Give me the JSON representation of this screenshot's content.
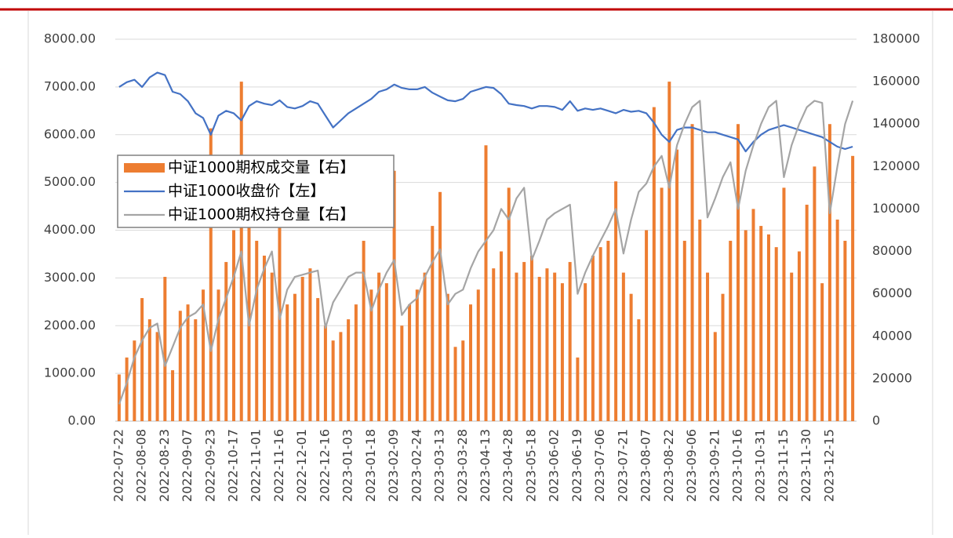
{
  "chart_data": {
    "type": "bar",
    "categories": [
      "2022-07-22",
      null,
      null,
      "2022-08-08",
      null,
      null,
      "2022-08-23",
      null,
      null,
      "2022-09-07",
      null,
      null,
      "2022-09-23",
      null,
      null,
      "2022-10-17",
      null,
      null,
      "2022-11-01",
      null,
      null,
      "2022-11-16",
      null,
      null,
      "2022-12-01",
      null,
      null,
      "2022-12-16",
      null,
      null,
      "2023-01-03",
      null,
      null,
      "2023-01-18",
      null,
      null,
      "2023-02-09",
      null,
      null,
      "2023-02-24",
      null,
      null,
      "2023-03-13",
      null,
      null,
      "2023-03-28",
      null,
      null,
      "2023-04-13",
      null,
      null,
      "2023-04-28",
      null,
      null,
      "2023-05-18",
      null,
      null,
      "2023-06-02",
      null,
      null,
      "2023-06-19",
      null,
      null,
      "2023-07-06",
      null,
      null,
      "2023-07-21",
      null,
      null,
      "2023-08-07",
      null,
      null,
      "2023-08-22",
      null,
      null,
      "2023-09-06",
      null,
      null,
      "2023-09-21",
      null,
      null,
      "2023-10-16",
      null,
      null,
      "2023-10-31",
      null,
      null,
      "2023-11-15",
      null,
      null,
      "2023-11-30",
      null,
      null,
      "2023-12-15",
      null,
      null,
      null
    ],
    "series": [
      {
        "name": "中证1000期权成交量【右】",
        "type": "bar",
        "axis": "y2",
        "color": "#ED7D31",
        "values": [
          22000,
          30000,
          38000,
          58000,
          48000,
          42000,
          68000,
          24000,
          52000,
          55000,
          48000,
          62000,
          138000,
          62000,
          75000,
          90000,
          160000,
          92000,
          85000,
          78000,
          70000,
          92000,
          55000,
          60000,
          68000,
          72000,
          58000,
          45000,
          38000,
          42000,
          48000,
          55000,
          85000,
          62000,
          70000,
          65000,
          118000,
          45000,
          55000,
          62000,
          70000,
          92000,
          108000,
          60000,
          35000,
          38000,
          55000,
          62000,
          130000,
          72000,
          80000,
          110000,
          70000,
          75000,
          78000,
          68000,
          72000,
          70000,
          65000,
          75000,
          30000,
          65000,
          78000,
          82000,
          85000,
          113000,
          70000,
          60000,
          48000,
          90000,
          148000,
          110000,
          160000,
          128000,
          85000,
          140000,
          95000,
          70000,
          42000,
          60000,
          85000,
          140000,
          90000,
          100000,
          92000,
          88000,
          82000,
          110000,
          70000,
          80000,
          102000,
          120000,
          65000,
          140000,
          95000,
          85000,
          125000
        ]
      },
      {
        "name": "中证1000收盘价【左】",
        "type": "line",
        "color": "#4472C4",
        "values": [
          7000,
          7100,
          7150,
          7000,
          7200,
          7300,
          7250,
          6900,
          6850,
          6700,
          6450,
          6350,
          6000,
          6400,
          6500,
          6450,
          6300,
          6600,
          6700,
          6650,
          6620,
          6720,
          6580,
          6550,
          6600,
          6700,
          6650,
          6400,
          6150,
          6300,
          6450,
          6550,
          6650,
          6750,
          6900,
          6950,
          7050,
          6980,
          6950,
          6950,
          7000,
          6880,
          6800,
          6720,
          6700,
          6750,
          6900,
          6950,
          7000,
          6980,
          6850,
          6650,
          6620,
          6600,
          6550,
          6600,
          6600,
          6580,
          6520,
          6700,
          6500,
          6550,
          6520,
          6550,
          6500,
          6450,
          6520,
          6480,
          6500,
          6450,
          6250,
          6000,
          5850,
          6100,
          6150,
          6150,
          6100,
          6050,
          6050,
          6000,
          5950,
          5900,
          5650,
          5850,
          6000,
          6100,
          6150,
          6200,
          6150,
          6100,
          6050,
          6000,
          5950,
          5850,
          5750,
          5700,
          5750
        ]
      },
      {
        "name": "中证1000期权持仓量【右】",
        "type": "line",
        "axis": "y2",
        "color": "#A5A5A5",
        "values": [
          8000,
          18000,
          30000,
          38000,
          44000,
          46000,
          26000,
          35000,
          44000,
          49000,
          51000,
          55000,
          33000,
          48000,
          58000,
          68000,
          80000,
          45000,
          62000,
          72000,
          80000,
          48000,
          62000,
          68000,
          69000,
          70000,
          71000,
          44000,
          56000,
          62000,
          68000,
          70000,
          70000,
          52000,
          62000,
          70000,
          76000,
          50000,
          55000,
          58000,
          68000,
          75000,
          81000,
          55000,
          60000,
          62000,
          72000,
          80000,
          85000,
          90000,
          100000,
          95000,
          105000,
          110000,
          76000,
          85000,
          95000,
          98000,
          100000,
          102000,
          60000,
          70000,
          78000,
          85000,
          92000,
          100000,
          79000,
          95000,
          108000,
          112000,
          120000,
          125000,
          110000,
          130000,
          140000,
          148000,
          151000,
          96000,
          105000,
          115000,
          122000,
          100000,
          118000,
          130000,
          140000,
          148000,
          151000,
          115000,
          130000,
          140000,
          148000,
          151000,
          150000,
          98000,
          120000,
          140000,
          151000
        ]
      }
    ],
    "ylim": [
      0,
      8000
    ],
    "yticks": [
      {
        "value": 0,
        "label": "0.00"
      },
      {
        "value": 1000,
        "label": "1000.00"
      },
      {
        "value": 2000,
        "label": "2000.00"
      },
      {
        "value": 3000,
        "label": "3000.00"
      },
      {
        "value": 4000,
        "label": "4000.00"
      },
      {
        "value": 5000,
        "label": "5000.00"
      },
      {
        "value": 6000,
        "label": "6000.00"
      },
      {
        "value": 7000,
        "label": "7000.00"
      },
      {
        "value": 8000,
        "label": "8000.00"
      }
    ],
    "y2lim": [
      0,
      180000
    ],
    "y2ticks": [
      0,
      20000,
      40000,
      60000,
      80000,
      100000,
      120000,
      140000,
      160000,
      180000
    ],
    "grid": true,
    "legend": "left"
  }
}
